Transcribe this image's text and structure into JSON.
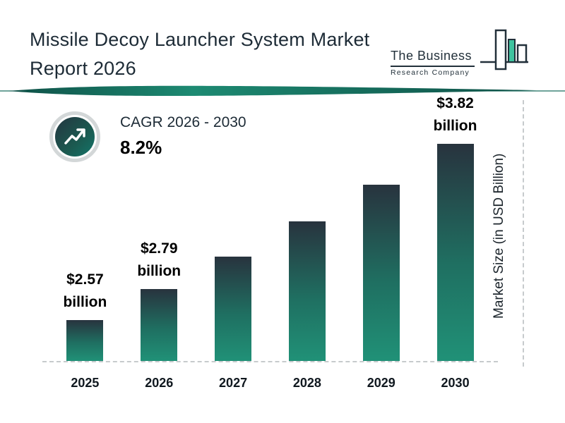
{
  "header": {
    "title_line1": "Missile Decoy Launcher System Market",
    "title_line2": "Report 2026",
    "logo": {
      "name_top": "The Business",
      "name_bottom": "Research Company"
    }
  },
  "cagr": {
    "label": "CAGR 2026 - 2030",
    "value": "8.2%"
  },
  "icons": {
    "cagr_icon": "trend-up-arrow-icon",
    "logo_icon": "bar-buildings-icon"
  },
  "colors": {
    "dark_navy": "#1d2b36",
    "teal": "#1a7a68",
    "bar_top": "#28333e",
    "bar_bottom": "#209177",
    "logo_accent": "#3fc39f",
    "dashed_line": "#c7cbcd",
    "ring_gray": "#d3d7d8"
  },
  "chart_data": {
    "type": "bar",
    "title": "Missile Decoy Launcher System Market Report 2026",
    "categories": [
      "2025",
      "2026",
      "2027",
      "2028",
      "2029",
      "2030"
    ],
    "values": [
      2.57,
      2.79,
      3.02,
      3.27,
      3.53,
      3.82
    ],
    "bar_labels": [
      "$2.57 billion",
      "$2.79 billion",
      "",
      "",
      "",
      "$3.82 billion"
    ],
    "xlabel": "",
    "ylabel": "Market Size (in USD Billion)",
    "ylim": [
      2.28,
      4.0
    ],
    "grid": false,
    "legend": "none",
    "cagr_annotation": "CAGR 2026 - 2030 8.2%"
  }
}
